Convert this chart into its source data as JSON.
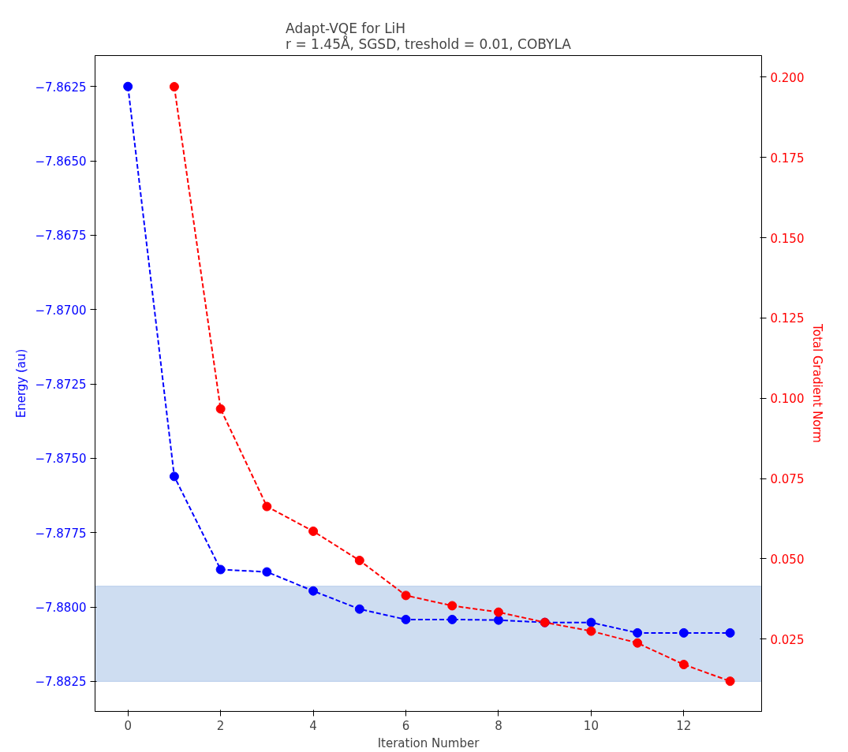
{
  "chart_data": {
    "type": "line",
    "title": "Adapt-VQE for LiH\nr = 1.45Å, SGSD, treshold = 0.01, COBYLA",
    "xlabel": "Iteration Number",
    "ylabel": "Energy (au)",
    "y2label": "Total Gradient Norm",
    "series": [
      {
        "color": "#0000ff",
        "x": [
          0,
          1,
          2,
          3,
          4,
          5,
          6,
          7,
          8,
          9,
          10,
          11,
          12,
          13
        ],
        "values": [
          -7.8625,
          -7.87561,
          -7.87874,
          -7.87882,
          -7.87946,
          -7.88007,
          -7.88042,
          -7.88042,
          -7.88044,
          -7.88052,
          -7.88052,
          -7.88087,
          -7.88087,
          -7.88087
        ]
      },
      {
        "color": "#ff0000",
        "axis": "y2",
        "x": [
          1,
          2,
          3,
          4,
          5,
          6,
          7,
          8,
          9,
          10,
          11,
          12,
          13
        ],
        "values": [
          0.197,
          0.0967,
          0.0663,
          0.0586,
          0.0495,
          0.0386,
          0.0354,
          0.0334,
          0.0302,
          0.0275,
          0.0238,
          0.0171,
          0.0119
        ]
      }
    ],
    "marker": "circle",
    "line_style": "dashed",
    "grid": false,
    "xlim": [
      -0.71,
      13.68
    ],
    "xticks": [
      0,
      2,
      4,
      6,
      8,
      10,
      12
    ],
    "ylim": [
      -7.88351,
      -7.86146
    ],
    "yticks": [
      {
        "value": -7.8625,
        "label": "−7.8625"
      },
      {
        "value": -7.865,
        "label": "−7.8650"
      },
      {
        "value": -7.8675,
        "label": "−7.8675"
      },
      {
        "value": -7.87,
        "label": "−7.8700"
      },
      {
        "value": -7.8725,
        "label": "−7.8725"
      },
      {
        "value": -7.875,
        "label": "−7.8750"
      },
      {
        "value": -7.8775,
        "label": "−7.8775"
      },
      {
        "value": -7.88,
        "label": "−7.8800"
      },
      {
        "value": -7.8825,
        "label": "−7.8825"
      }
    ],
    "y2lim": [
      0.0025,
      0.2067
    ],
    "y2ticks": [
      {
        "value": 0.025,
        "label": "0.025"
      },
      {
        "value": 0.05,
        "label": "0.050"
      },
      {
        "value": 0.075,
        "label": "0.075"
      },
      {
        "value": 0.1,
        "label": "0.100"
      },
      {
        "value": 0.125,
        "label": "0.125"
      },
      {
        "value": 0.15,
        "label": "0.150"
      },
      {
        "value": 0.175,
        "label": "0.175"
      },
      {
        "value": 0.2,
        "label": "0.200"
      }
    ],
    "bands": [
      {
        "axis": "y",
        "from": -7.8825,
        "to": -7.8793,
        "color": "#aec7e8"
      }
    ]
  }
}
